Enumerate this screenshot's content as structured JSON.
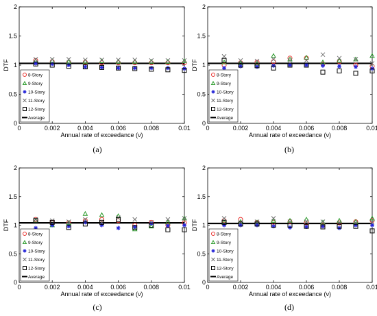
{
  "chart_data": [
    {
      "type": "scatter",
      "panel_label": "(a)",
      "xlabel": "Annual rate of exceedance (ν)",
      "ylabel": "DTF",
      "xlim": [
        0,
        0.01
      ],
      "ylim": [
        0,
        2
      ],
      "xticks": [
        "0",
        "0.002",
        "0.004",
        "0.006",
        "0.008",
        "0.01"
      ],
      "yticks": [
        "0",
        "0.5",
        "1",
        "1.5",
        "2"
      ],
      "legend_position": "bottom-left",
      "x": [
        0.001,
        0.002,
        0.003,
        0.004,
        0.005,
        0.006,
        0.007,
        0.008,
        0.009,
        0.01
      ],
      "series": [
        {
          "name": "8-Story",
          "marker": "circle",
          "color": "#e8302c",
          "values": [
            1.08,
            1.06,
            1.05,
            1.05,
            1.04,
            1.04,
            1.04,
            1.04,
            1.04,
            1.04
          ]
        },
        {
          "name": "9-Story",
          "marker": "triangle",
          "color": "#2a9a2a",
          "values": [
            1.07,
            1.07,
            1.06,
            1.06,
            1.07,
            1.06,
            1.06,
            1.06,
            1.06,
            1.07
          ]
        },
        {
          "name": "10-Story",
          "marker": "asterisk",
          "color": "#2828d8",
          "values": [
            1.03,
            1.02,
            1.0,
            0.97,
            0.96,
            0.95,
            0.95,
            0.95,
            0.95,
            0.94
          ]
        },
        {
          "name": "11-Story",
          "marker": "x",
          "color": "#707070",
          "values": [
            1.1,
            1.1,
            1.1,
            1.09,
            1.09,
            1.09,
            1.09,
            1.08,
            1.08,
            1.08
          ]
        },
        {
          "name": "12-Story",
          "marker": "square",
          "color": "#000000",
          "values": [
            1.02,
            1.0,
            0.98,
            0.97,
            0.96,
            0.95,
            0.94,
            0.93,
            0.92,
            0.91
          ]
        }
      ],
      "average": {
        "name": "Average",
        "value": 1.03
      }
    },
    {
      "type": "scatter",
      "panel_label": "(b)",
      "xlabel": "Annual rate of exceedance (ν)",
      "ylabel": "DTF",
      "xlim": [
        0,
        0.01
      ],
      "ylim": [
        0,
        2
      ],
      "xticks": [
        "0",
        "0.002",
        "0.004",
        "0.006",
        "0.008",
        "0.01"
      ],
      "yticks": [
        "0",
        "0.5",
        "1",
        "1.5",
        "2"
      ],
      "legend_position": "bottom-left",
      "x": [
        0.001,
        0.002,
        0.003,
        0.004,
        0.005,
        0.006,
        0.007,
        0.008,
        0.009,
        0.01
      ],
      "series": [
        {
          "name": "8-Story",
          "marker": "circle",
          "color": "#e8302c",
          "values": [
            1.0,
            1.04,
            1.05,
            1.06,
            1.12,
            1.12,
            1.02,
            1.06,
            1.0,
            0.98
          ]
        },
        {
          "name": "9-Story",
          "marker": "triangle",
          "color": "#2a9a2a",
          "values": [
            1.05,
            1.04,
            1.03,
            1.16,
            1.1,
            1.13,
            1.05,
            1.08,
            1.1,
            1.16
          ]
        },
        {
          "name": "10-Story",
          "marker": "asterisk",
          "color": "#2828d8",
          "values": [
            0.95,
            0.98,
            0.97,
            0.99,
            1.0,
            1.0,
            0.99,
            0.98,
            0.97,
            0.94
          ]
        },
        {
          "name": "11-Story",
          "marker": "x",
          "color": "#707070",
          "values": [
            1.15,
            1.08,
            1.07,
            1.1,
            1.08,
            1.08,
            1.18,
            1.12,
            1.1,
            1.03
          ]
        },
        {
          "name": "12-Story",
          "marker": "square",
          "color": "#000000",
          "values": [
            1.08,
            1.0,
            0.99,
            0.95,
            1.0,
            1.0,
            0.88,
            0.9,
            0.86,
            0.9
          ]
        }
      ],
      "average": {
        "name": "Average",
        "value": 1.03
      }
    },
    {
      "type": "scatter",
      "panel_label": "(c)",
      "xlabel": "Annual rate of exceedance (ν)",
      "ylabel": "DTF",
      "xlim": [
        0,
        0.01
      ],
      "ylim": [
        0,
        2
      ],
      "xticks": [
        "0",
        "0.002",
        "0.004",
        "0.006",
        "0.008",
        "0.01"
      ],
      "yticks": [
        "0",
        "0.5",
        "1",
        "1.5",
        "2"
      ],
      "legend_position": "bottom-left",
      "x": [
        0.001,
        0.002,
        0.003,
        0.004,
        0.005,
        0.006,
        0.007,
        0.008,
        0.009,
        0.01
      ],
      "series": [
        {
          "name": "8-Story",
          "marker": "circle",
          "color": "#e8302c",
          "values": [
            1.1,
            1.05,
            1.04,
            1.08,
            1.1,
            1.08,
            1.0,
            1.05,
            1.0,
            1.04
          ]
        },
        {
          "name": "9-Story",
          "marker": "triangle",
          "color": "#2a9a2a",
          "values": [
            1.08,
            1.0,
            1.04,
            1.2,
            1.18,
            1.16,
            0.93,
            0.98,
            1.05,
            1.12
          ]
        },
        {
          "name": "10-Story",
          "marker": "asterisk",
          "color": "#2828d8",
          "values": [
            0.95,
            1.0,
            0.98,
            1.05,
            1.0,
            0.95,
            0.97,
            1.03,
            0.99,
            1.0
          ]
        },
        {
          "name": "11-Story",
          "marker": "x",
          "color": "#707070",
          "values": [
            1.1,
            1.08,
            1.06,
            1.1,
            1.05,
            1.13,
            1.1,
            1.05,
            1.1,
            1.12
          ]
        },
        {
          "name": "12-Story",
          "marker": "square",
          "color": "#000000",
          "values": [
            1.08,
            1.05,
            0.96,
            1.02,
            1.05,
            1.1,
            0.96,
            1.0,
            0.92,
            0.92
          ]
        }
      ],
      "average": {
        "name": "Average",
        "value": 1.04
      }
    },
    {
      "type": "scatter",
      "panel_label": "(d)",
      "xlabel": "Annual rate of exceedance (ν)",
      "ylabel": "DTF",
      "xlim": [
        0,
        0.01
      ],
      "ylim": [
        0,
        2
      ],
      "xticks": [
        "0",
        "0.002",
        "0.004",
        "0.006",
        "0.008",
        "0.01"
      ],
      "yticks": [
        "0",
        "0.5",
        "1",
        "1.5",
        "2"
      ],
      "legend_position": "bottom-left",
      "x": [
        0.001,
        0.002,
        0.003,
        0.004,
        0.005,
        0.006,
        0.007,
        0.008,
        0.009,
        0.01
      ],
      "series": [
        {
          "name": "8-Story",
          "marker": "circle",
          "color": "#e8302c",
          "values": [
            1.08,
            1.1,
            1.05,
            1.05,
            1.06,
            1.04,
            1.0,
            1.04,
            1.06,
            1.08
          ]
        },
        {
          "name": "9-Story",
          "marker": "triangle",
          "color": "#2a9a2a",
          "values": [
            1.05,
            1.06,
            1.05,
            1.08,
            1.08,
            1.1,
            1.05,
            1.08,
            1.06,
            1.12
          ]
        },
        {
          "name": "10-Story",
          "marker": "asterisk",
          "color": "#2828d8",
          "values": [
            1.0,
            1.0,
            1.0,
            0.98,
            0.96,
            0.97,
            0.98,
            0.95,
            1.0,
            1.0
          ]
        },
        {
          "name": "11-Story",
          "marker": "x",
          "color": "#707070",
          "values": [
            1.12,
            1.05,
            1.06,
            1.12,
            1.06,
            1.06,
            1.06,
            1.04,
            1.04,
            1.05
          ]
        },
        {
          "name": "12-Story",
          "marker": "square",
          "color": "#000000",
          "values": [
            1.05,
            1.02,
            1.02,
            1.0,
            1.0,
            0.98,
            0.97,
            0.98,
            0.98,
            0.9
          ]
        }
      ],
      "average": {
        "name": "Average",
        "value": 1.03
      }
    }
  ]
}
